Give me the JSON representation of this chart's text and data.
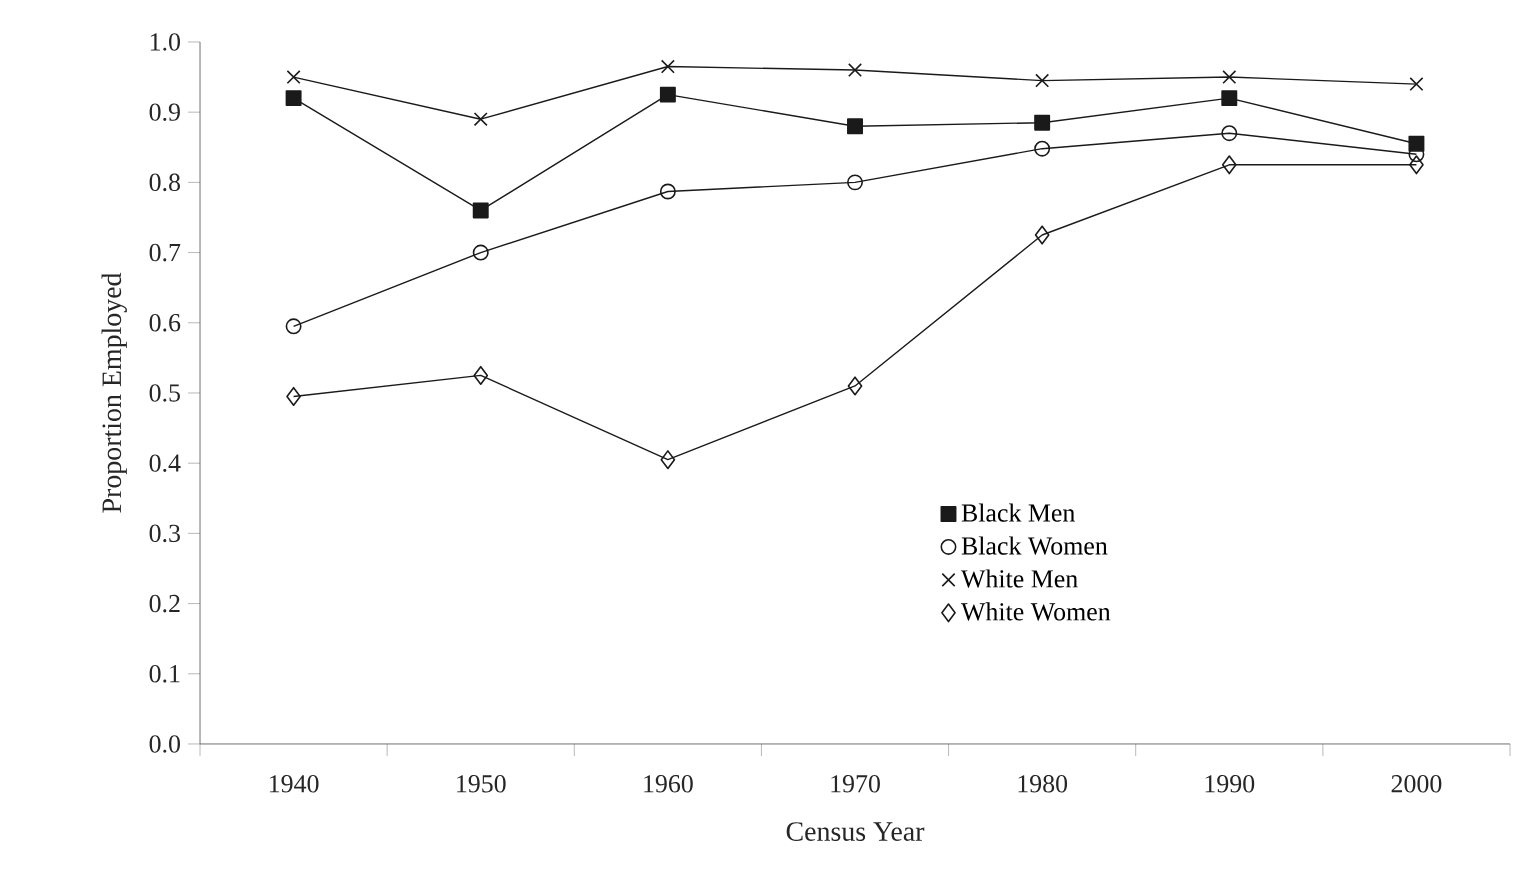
{
  "chart_data": {
    "type": "line",
    "xlabel": "Census Year",
    "ylabel": "Proportion Employed",
    "categories": [
      "1940",
      "1950",
      "1960",
      "1970",
      "1980",
      "1990",
      "2000"
    ],
    "ylim": [
      0,
      1
    ],
    "yticks": [
      {
        "value": 0,
        "label": "0.0"
      },
      0.1,
      0.2,
      0.3,
      0.4,
      0.5,
      0.6,
      0.7,
      0.8,
      0.9,
      {
        "value": 1,
        "label": "1.0"
      }
    ],
    "legend": "bottom right",
    "grid": false,
    "line_style": "solid",
    "series": [
      {
        "name": "Black Men",
        "color": "#1a1a1a",
        "marker": "square",
        "values": [
          0.92,
          0.76,
          0.925,
          0.88,
          0.885,
          0.92,
          0.855
        ]
      },
      {
        "name": "Black Women",
        "color": "#1a1a1a",
        "marker": "circle",
        "values": [
          0.595,
          0.7,
          0.787,
          0.8,
          0.848,
          0.87,
          0.84
        ]
      },
      {
        "name": "White Men",
        "color": "#1a1a1a",
        "marker": "cross",
        "values": [
          0.95,
          0.89,
          0.965,
          0.96,
          0.945,
          0.95,
          0.94
        ]
      },
      {
        "name": "White Women",
        "color": "#1a1a1a",
        "marker": "diamond",
        "values": [
          0.495,
          0.525,
          0.405,
          0.51,
          0.725,
          0.825,
          0.825
        ]
      }
    ]
  }
}
